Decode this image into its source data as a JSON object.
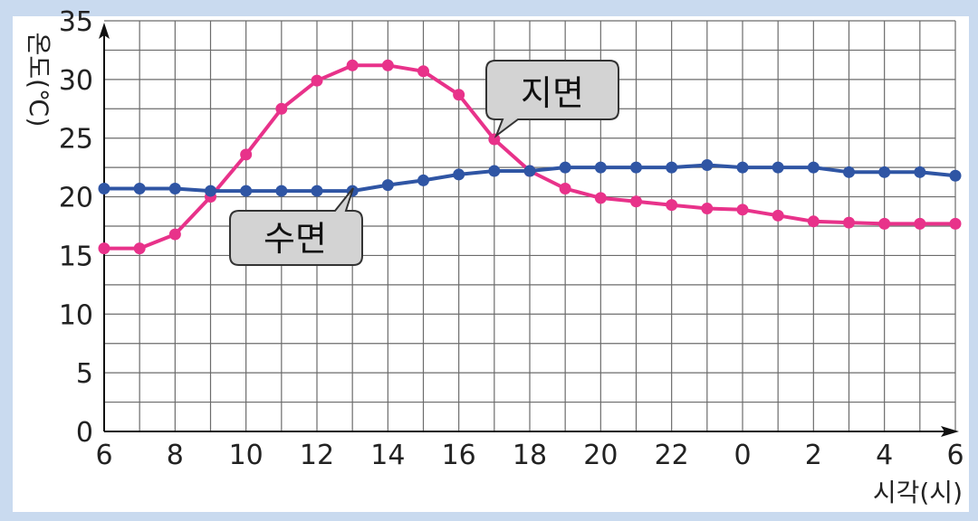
{
  "chart_data": {
    "type": "line",
    "x": [
      "6",
      "7",
      "8",
      "9",
      "10",
      "11",
      "12",
      "13",
      "14",
      "15",
      "16",
      "17",
      "18",
      "19",
      "20",
      "21",
      "22",
      "23",
      "0",
      "1",
      "2",
      "3",
      "4",
      "5",
      "6"
    ],
    "xticks": [
      "6",
      "8",
      "10",
      "12",
      "14",
      "16",
      "18",
      "20",
      "22",
      "0",
      "2",
      "4",
      "6"
    ],
    "yticks": [
      "0",
      "5",
      "10",
      "15",
      "20",
      "25",
      "30",
      "35"
    ],
    "ylim": [
      0,
      35
    ],
    "xlabel": "시각(시)",
    "ylabel": "온도(℃)",
    "grid": true,
    "series": [
      {
        "name": "지면",
        "color": "#e8328a",
        "values": [
          15.6,
          15.6,
          16.8,
          20.0,
          23.6,
          27.5,
          29.9,
          31.2,
          31.2,
          30.7,
          28.7,
          24.9,
          22.2,
          20.7,
          19.9,
          19.6,
          19.3,
          19.0,
          18.9,
          18.4,
          17.9,
          17.8,
          17.7,
          17.7,
          17.7
        ]
      },
      {
        "name": "수면",
        "color": "#2f55a4",
        "values": [
          20.7,
          20.7,
          20.7,
          20.5,
          20.5,
          20.5,
          20.5,
          20.5,
          21.0,
          21.4,
          21.9,
          22.2,
          22.2,
          22.5,
          22.5,
          22.5,
          22.5,
          22.7,
          22.5,
          22.5,
          22.5,
          22.1,
          22.1,
          22.1,
          21.8
        ]
      }
    ],
    "annotations": [
      {
        "label": "지면",
        "series": "지면"
      },
      {
        "label": "수면",
        "series": "수면"
      }
    ]
  },
  "colors": {
    "background": "#c9daef",
    "plot": "#ffffff",
    "grid": "#6b6b6b",
    "callout_fill": "#d3d3d3"
  }
}
